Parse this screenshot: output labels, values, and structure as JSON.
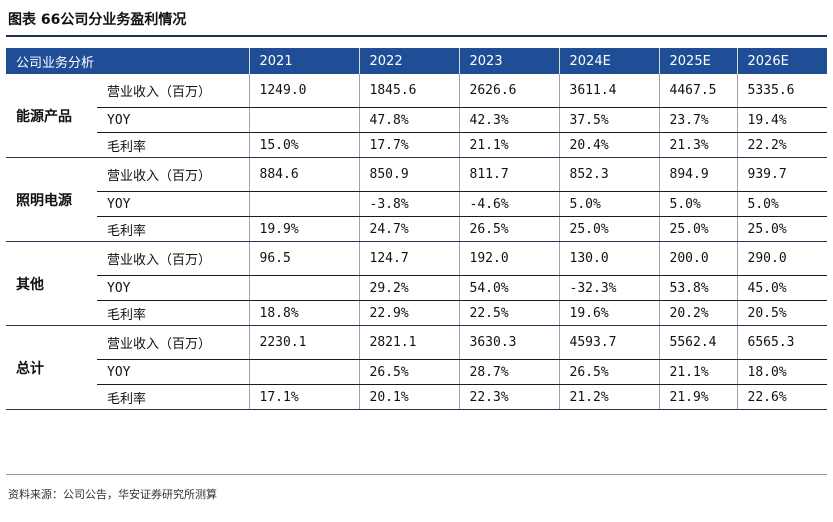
{
  "title": "图表 66公司分业务盈利情况",
  "header": {
    "corner": "公司业务分析",
    "years": [
      "2021",
      "2022",
      "2023",
      "2024E",
      "2025E",
      "2026E"
    ]
  },
  "groups": [
    {
      "name": "能源产品",
      "rows": [
        {
          "metric": "营业收入（百万）",
          "values": [
            "1249.0",
            "1845.6",
            "2626.6",
            "3611.4",
            "4467.5",
            "5335.6"
          ]
        },
        {
          "metric": "YOY",
          "values": [
            "",
            "47.8%",
            "42.3%",
            "37.5%",
            "23.7%",
            "19.4%"
          ]
        },
        {
          "metric": "毛利率",
          "values": [
            "15.0%",
            "17.7%",
            "21.1%",
            "20.4%",
            "21.3%",
            "22.2%"
          ]
        }
      ]
    },
    {
      "name": "照明电源",
      "rows": [
        {
          "metric": "营业收入（百万）",
          "values": [
            "884.6",
            "850.9",
            "811.7",
            "852.3",
            "894.9",
            "939.7"
          ]
        },
        {
          "metric": "YOY",
          "values": [
            "",
            "-3.8%",
            "-4.6%",
            "5.0%",
            "5.0%",
            "5.0%"
          ]
        },
        {
          "metric": "毛利率",
          "values": [
            "19.9%",
            "24.7%",
            "26.5%",
            "25.0%",
            "25.0%",
            "25.0%"
          ]
        }
      ]
    },
    {
      "name": "其他",
      "rows": [
        {
          "metric": "营业收入（百万）",
          "values": [
            "96.5",
            "124.7",
            "192.0",
            "130.0",
            "200.0",
            "290.0"
          ]
        },
        {
          "metric": "YOY",
          "values": [
            "",
            "29.2%",
            "54.0%",
            "-32.3%",
            "53.8%",
            "45.0%"
          ]
        },
        {
          "metric": "毛利率",
          "values": [
            "18.8%",
            "22.9%",
            "22.5%",
            "19.6%",
            "20.2%",
            "20.5%"
          ]
        }
      ]
    },
    {
      "name": "总计",
      "rows": [
        {
          "metric": "营业收入（百万）",
          "values": [
            "2230.1",
            "2821.1",
            "3630.3",
            "4593.7",
            "5562.4",
            "6565.3"
          ]
        },
        {
          "metric": "YOY",
          "values": [
            "",
            "26.5%",
            "28.7%",
            "26.5%",
            "21.1%",
            "18.0%"
          ]
        },
        {
          "metric": "毛利率",
          "values": [
            "17.1%",
            "20.1%",
            "22.3%",
            "21.2%",
            "21.9%",
            "22.6%"
          ]
        }
      ]
    }
  ],
  "source": "资料来源：公司公告，华安证券研究所测算"
}
